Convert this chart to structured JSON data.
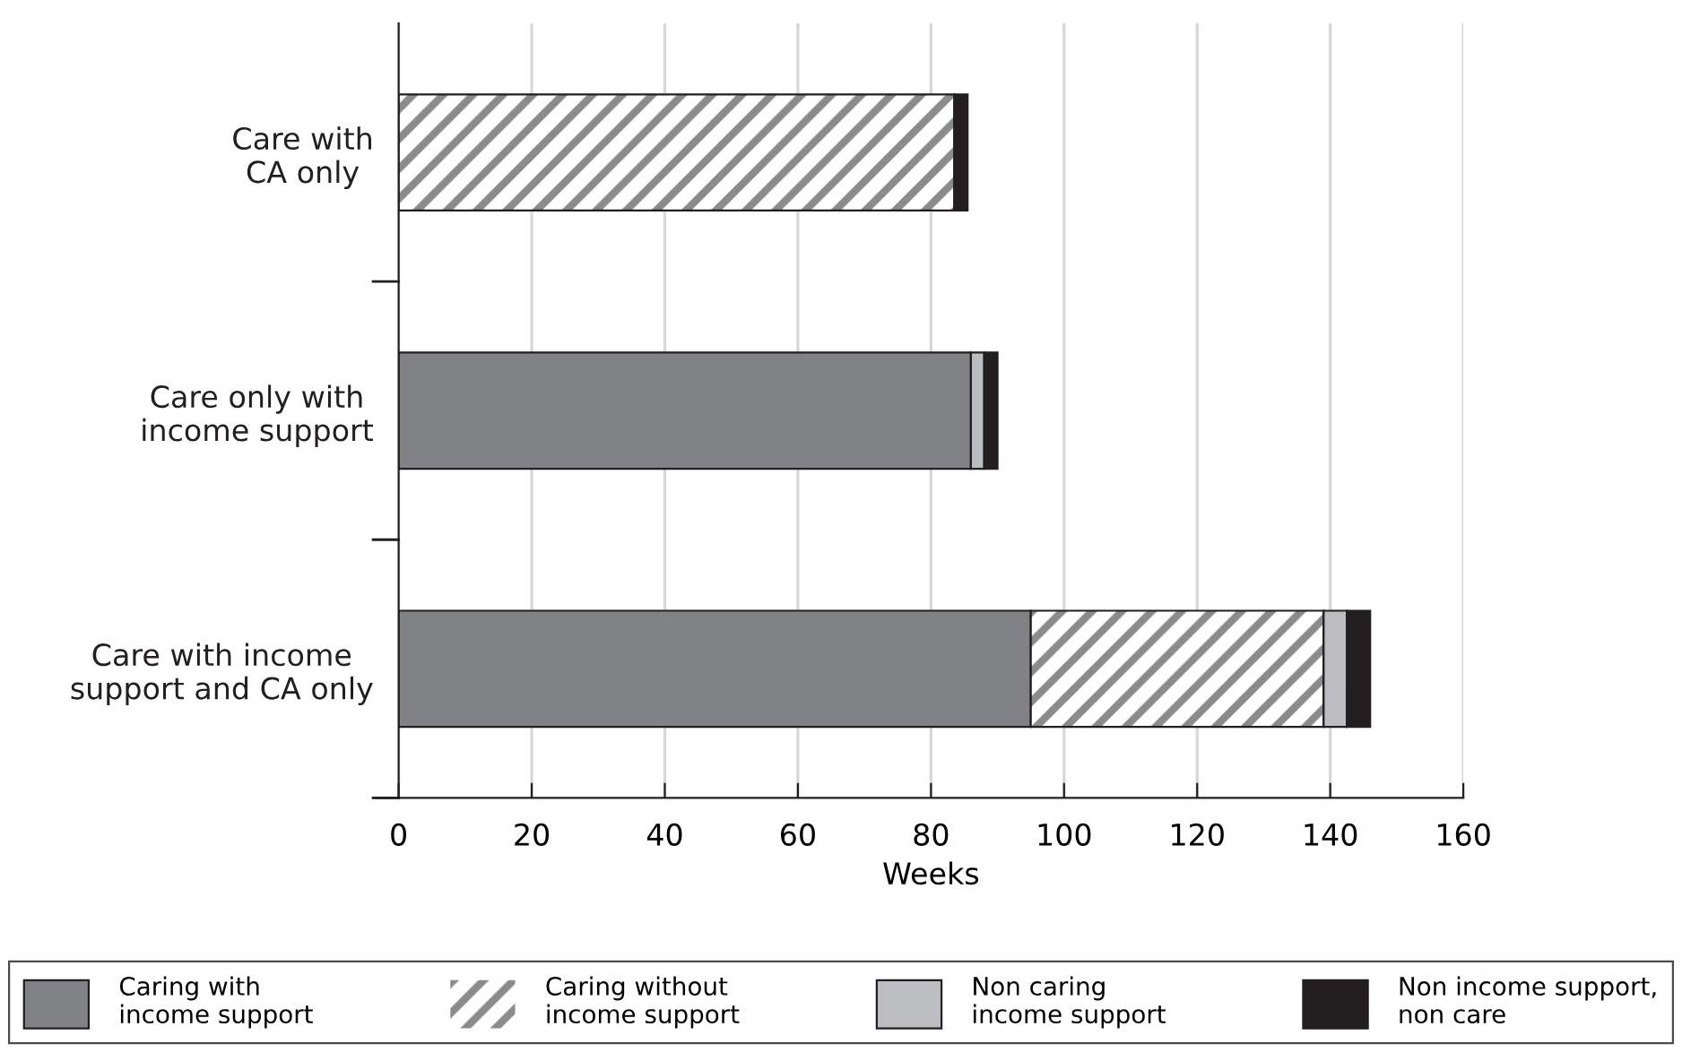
{
  "chart_data": {
    "type": "bar",
    "orientation": "horizontal",
    "stacked": true,
    "xlabel": "Weeks",
    "categories": [
      "Care with\nCA only",
      "Care only with\nincome support",
      "Care with income\nsupport and CA only"
    ],
    "series": [
      {
        "name": "Caring with\nincome support",
        "color": "#818285",
        "values": [
          null,
          86,
          95
        ]
      },
      {
        "name": "Caring without\nincome support",
        "color": "#8a8b8d",
        "values": [
          83.5,
          null,
          44
        ]
      },
      {
        "name": "Non caring\nincome support",
        "color": "#bcbdc0",
        "values": [
          null,
          2,
          3.5
        ]
      },
      {
        "name": "Non income support,\nnon care",
        "color": "#231f20",
        "values": [
          2,
          2,
          3.5
        ]
      }
    ],
    "xlim": [
      0,
      160
    ],
    "xticks": [
      0,
      20,
      40,
      60,
      80,
      100,
      120,
      140,
      160
    ],
    "grid": "x",
    "legend": "bottom"
  }
}
